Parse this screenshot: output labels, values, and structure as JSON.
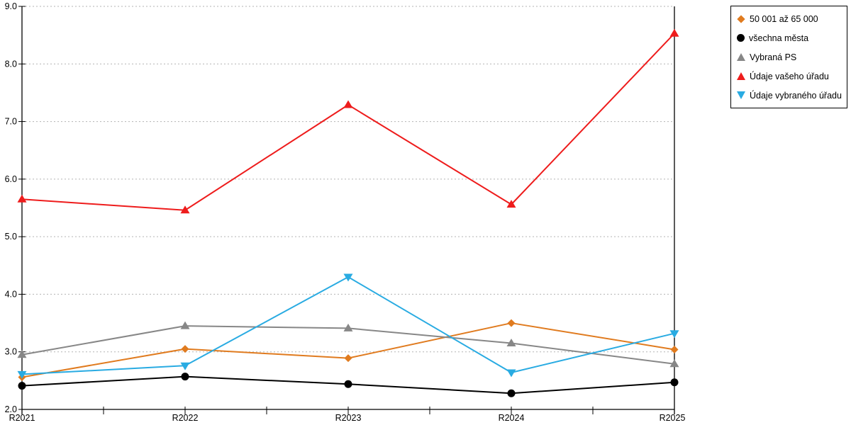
{
  "chart_data": {
    "type": "line",
    "title": "",
    "xlabel": "",
    "ylabel": "",
    "categories": [
      "R2021",
      "R2022",
      "R2023",
      "R2024",
      "R2025"
    ],
    "ylim": [
      2.0,
      9.0
    ],
    "y_tick_labels": [
      "2.0",
      "3.0",
      "4.0",
      "5.0",
      "6.0",
      "7.0",
      "8.0",
      "9.0"
    ],
    "grid": "horizontal-dotted",
    "grid_color": "#b3b3b3",
    "axis_color": "#000000",
    "minor_ticks_between_categories": true,
    "legend_position": "outside-top-right",
    "series": [
      {
        "name": "50 001 až 65 000",
        "marker": "diamond",
        "color": "#e07b1f",
        "values": [
          2.56,
          3.05,
          2.89,
          3.5,
          3.04
        ]
      },
      {
        "name": "všechna města",
        "marker": "circle",
        "color": "#000000",
        "values": [
          2.41,
          2.57,
          2.44,
          2.28,
          2.47
        ]
      },
      {
        "name": "Vybraná PS",
        "marker": "triangle-up",
        "color": "#878787",
        "values": [
          2.95,
          3.45,
          3.41,
          3.15,
          2.79
        ]
      },
      {
        "name": "Údaje vašeho úřadu",
        "marker": "triangle-up",
        "color": "#ee1c1c",
        "values": [
          5.65,
          5.46,
          7.29,
          5.56,
          8.53
        ]
      },
      {
        "name": "Údaje vybraného úřadu",
        "marker": "triangle-down",
        "color": "#29abe2",
        "values": [
          2.61,
          2.76,
          4.3,
          2.64,
          3.32
        ]
      }
    ]
  }
}
